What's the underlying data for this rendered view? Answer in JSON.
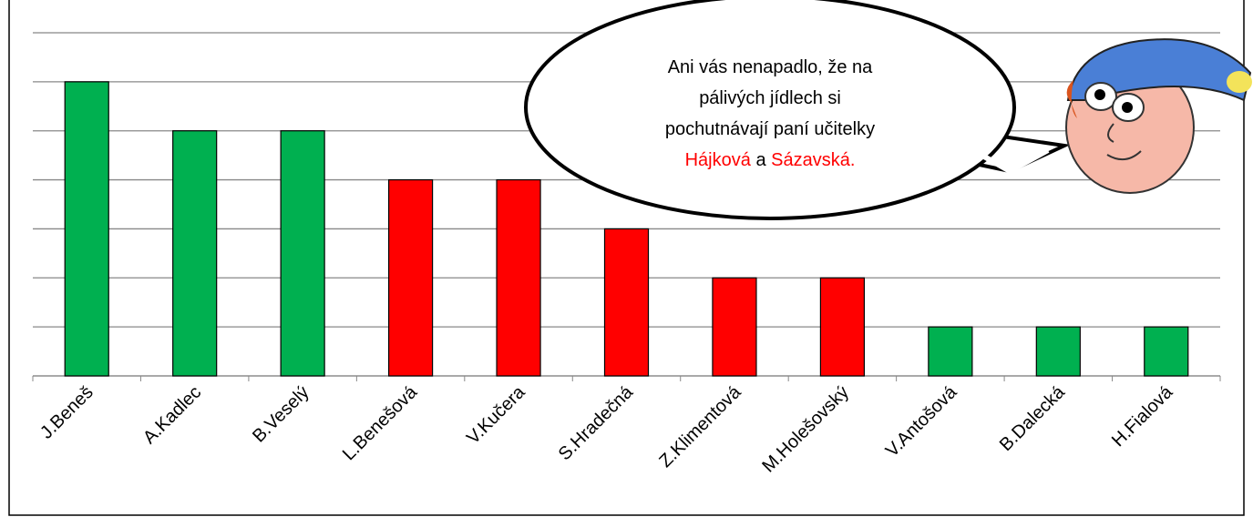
{
  "chart_data": {
    "type": "bar",
    "categories": [
      "J.Beneš",
      "A.Kadlec",
      "B.Veselý",
      "L.Benešová",
      "V.Kučera",
      "S.Hradečná",
      "Z.Klimentová",
      "M.Holešovský",
      "V.Antošová",
      "B.Dalecká",
      "H.Fialová"
    ],
    "values": [
      6,
      5,
      5,
      4,
      4,
      3,
      2,
      2,
      1,
      1,
      1
    ],
    "colors": [
      "#00b050",
      "#00b050",
      "#00b050",
      "#ff0000",
      "#ff0000",
      "#ff0000",
      "#ff0000",
      "#ff0000",
      "#00b050",
      "#00b050",
      "#00b050"
    ],
    "ylim": [
      0,
      7
    ],
    "yticks": [
      0,
      1,
      2,
      3,
      4,
      5,
      6,
      7
    ],
    "grid": true,
    "annotation": [
      "Ani vás nenapadlo, že na",
      "pálivých jídlech si",
      "pochutnávají paní učitelky"
    ],
    "annotation_highlight": {
      "names": [
        "Hájková",
        "Sázavská."
      ],
      "joiner": "a",
      "color": "#ff0000"
    }
  }
}
